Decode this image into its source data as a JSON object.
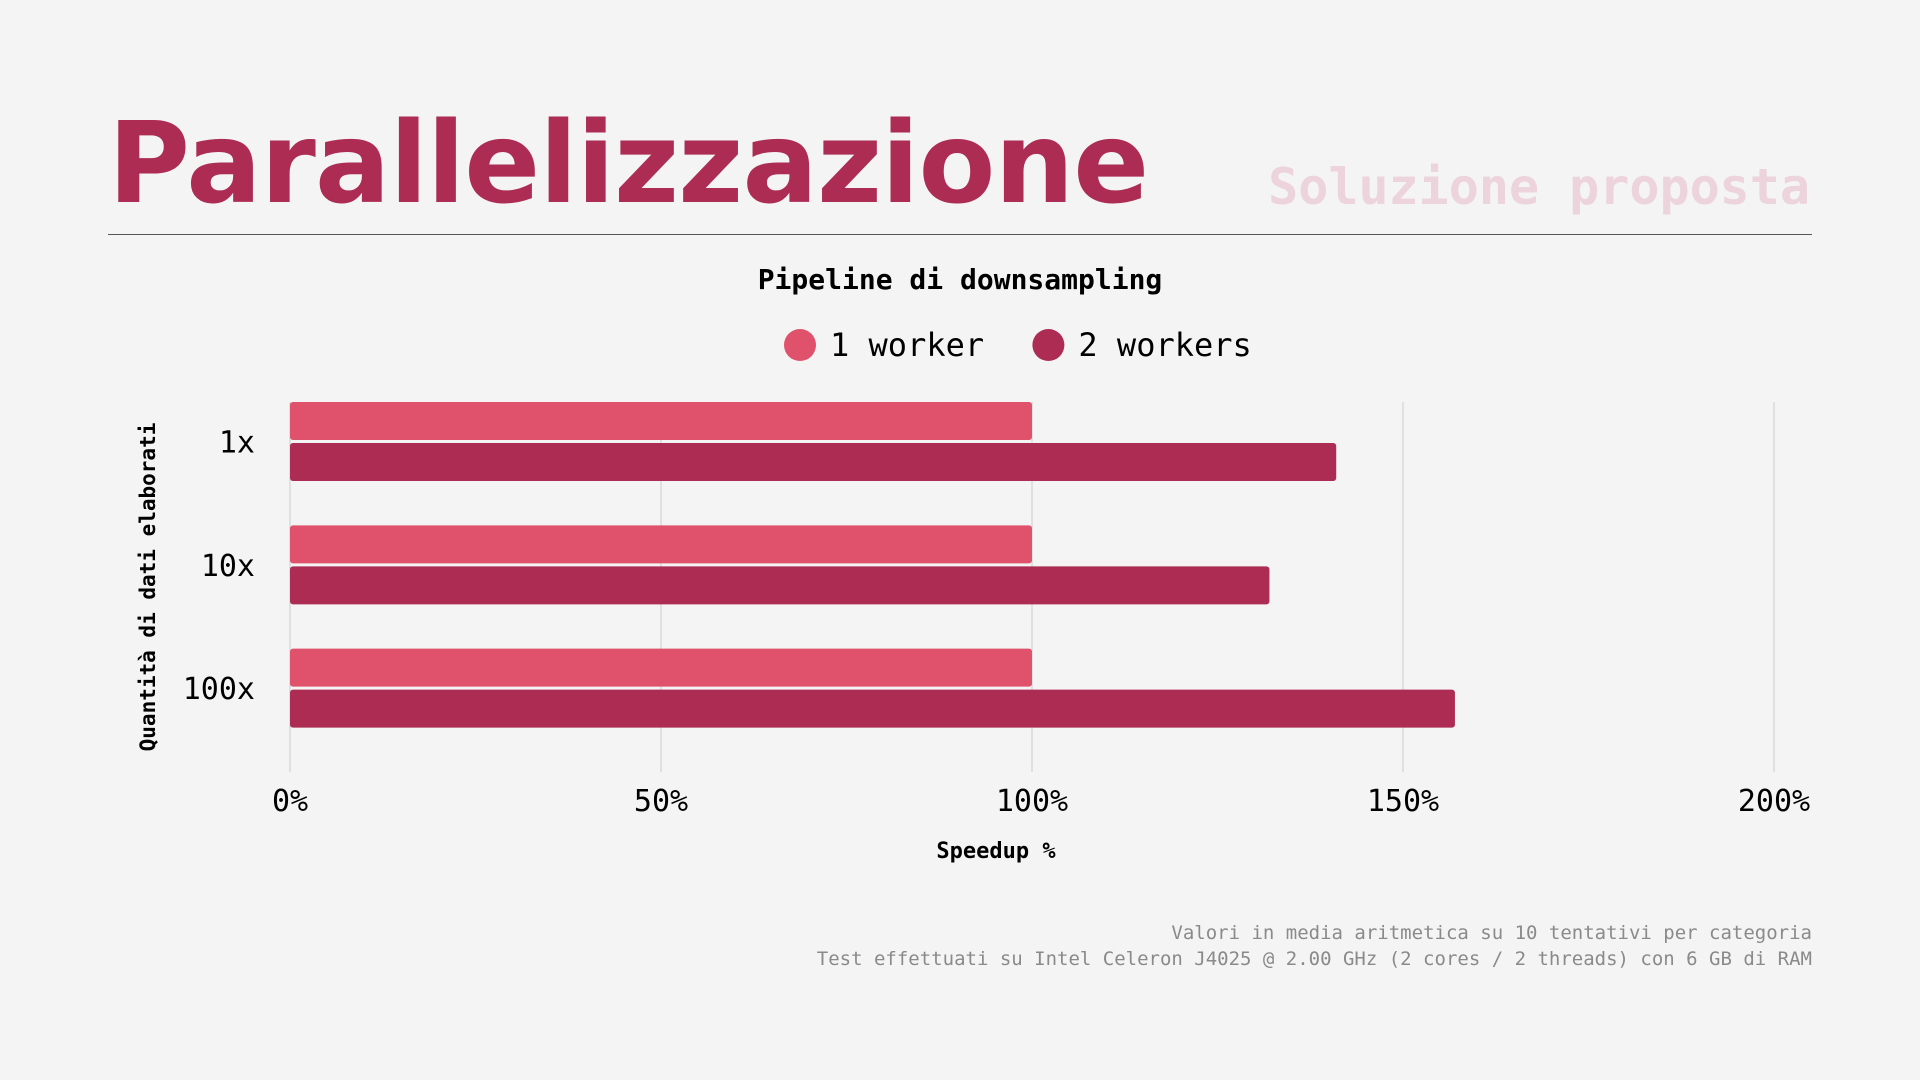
{
  "header": {
    "title": "Parallelizzazione",
    "subtitle": "Soluzione proposta"
  },
  "colors": {
    "title": "#ad2c54",
    "subtitle": "#ecd3dc",
    "series_1": "#e0526b",
    "series_2": "#ad2c54"
  },
  "chart_data": {
    "type": "bar",
    "orientation": "horizontal",
    "title": "Pipeline di downsampling",
    "xlabel": "Speedup %",
    "ylabel": "Quantità di dati elaborati",
    "categories": [
      "1x",
      "10x",
      "100x"
    ],
    "series": [
      {
        "name": "1 worker",
        "values": [
          100,
          100,
          100
        ],
        "color": "#e0526b"
      },
      {
        "name": "2 workers",
        "values": [
          141,
          132,
          157
        ],
        "color": "#ad2c54"
      }
    ],
    "xlim": [
      0,
      200
    ],
    "xticks": [
      0,
      50,
      100,
      150,
      200
    ],
    "xtick_labels": [
      "0%",
      "50%",
      "100%",
      "150%",
      "200%"
    ],
    "grid": true,
    "legend_position": "top-center"
  },
  "footnotes": [
    "Valori in media aritmetica su 10 tentativi per categoria",
    "Test effettuati su Intel Celeron J4025 @ 2.00 GHz (2 cores / 2 threads) con 6 GB di RAM"
  ]
}
